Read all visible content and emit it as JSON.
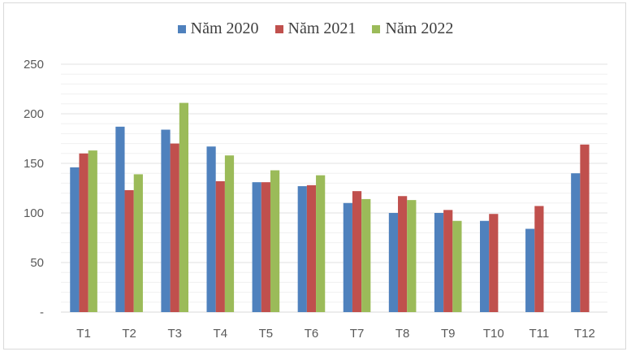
{
  "chart_data": {
    "type": "bar",
    "title": "",
    "xlabel": "",
    "ylabel": "",
    "categories": [
      "T1",
      "T2",
      "T3",
      "T4",
      "T5",
      "T6",
      "T7",
      "T8",
      "T9",
      "T10",
      "T11",
      "T12"
    ],
    "ylim": [
      0,
      250
    ],
    "yticks": [
      {
        "value": 250,
        "label": "250"
      },
      {
        "value": 200,
        "label": "200"
      },
      {
        "value": 150,
        "label": "150"
      },
      {
        "value": 100,
        "label": "100"
      },
      {
        "value": 50,
        "label": "50"
      },
      {
        "value": 0,
        "label": "-"
      }
    ],
    "grid": true,
    "legend_position": "top",
    "series": [
      {
        "name": "Năm 2020",
        "color": "#4f81bd",
        "values": [
          146,
          187,
          184,
          167,
          131,
          127,
          110,
          100,
          100,
          92,
          84,
          140
        ]
      },
      {
        "name": "Năm 2021",
        "color": "#c0504d",
        "values": [
          160,
          123,
          170,
          132,
          131,
          128,
          122,
          117,
          103,
          99,
          107,
          169
        ]
      },
      {
        "name": "Năm 2022",
        "color": "#9bbb59",
        "values": [
          163,
          139,
          211,
          158,
          143,
          138,
          114,
          113,
          92,
          null,
          null,
          null
        ]
      }
    ]
  }
}
